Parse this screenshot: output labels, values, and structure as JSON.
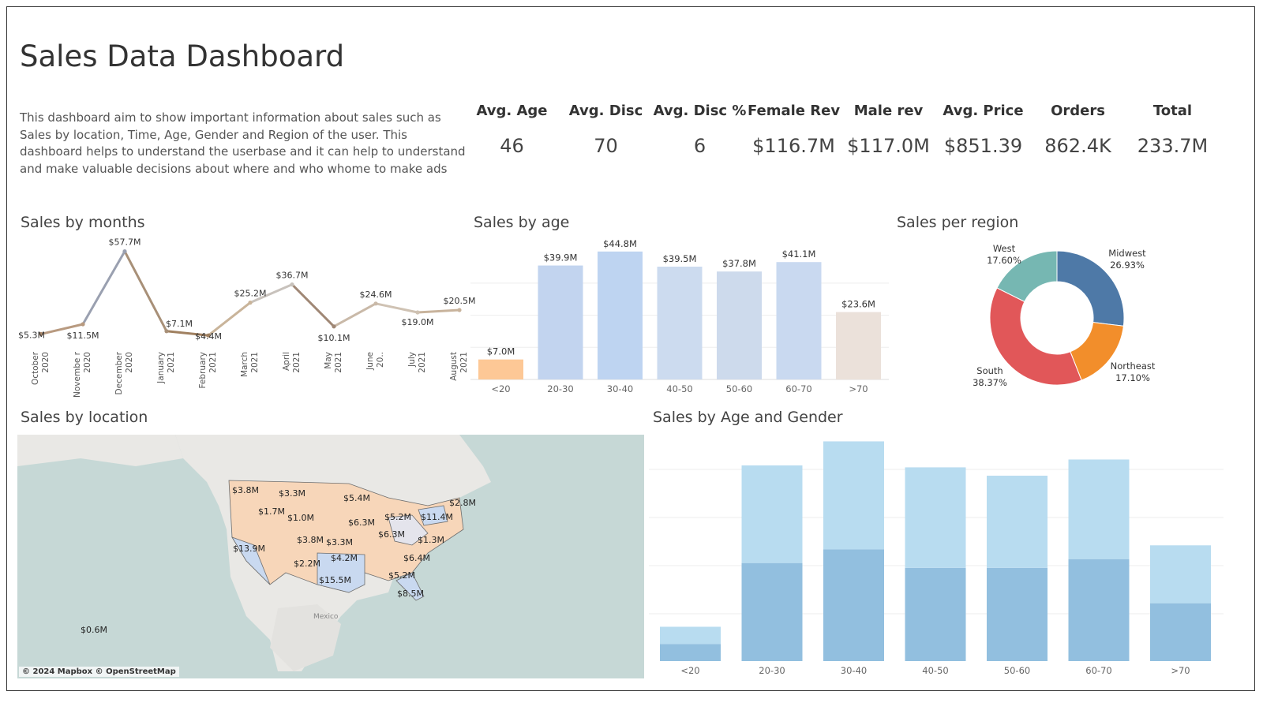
{
  "header": {
    "title": "Sales Data Dashboard",
    "description": "This dashboard aim to show important information about sales such as Sales by location, Time, Age, Gender and Region of the user. This dashboard helps to understand the userbase and it can help to understand and make valuable decisions about where and who whome to make ads"
  },
  "kpis": [
    {
      "label": "Avg. Age",
      "value": "46"
    },
    {
      "label": "Avg. Disc",
      "value": "70"
    },
    {
      "label": "Avg. Disc %",
      "value": "6"
    },
    {
      "label": "Female Rev",
      "value": "$116.7M"
    },
    {
      "label": "Male rev",
      "value": "$117.0M"
    },
    {
      "label": "Avg. Price",
      "value": "$851.39"
    },
    {
      "label": "Orders",
      "value": "862.4K"
    },
    {
      "label": "Total",
      "value": "233.7M"
    }
  ],
  "sections": {
    "months": "Sales by months",
    "age": "Sales by age",
    "region": "Sales per region",
    "location": "Sales by location",
    "age_gender": "Sales by Age and Gender"
  },
  "chart_data": [
    {
      "type": "line",
      "title": "Sales by months",
      "categories": [
        "October 2020",
        "Novembe r 2020",
        "December 2020",
        "January 2021",
        "February 2021",
        "March 2021",
        "April 2021",
        "May 2021",
        "June 20..",
        "July 2021",
        "August 2021"
      ],
      "values": [
        5.3,
        11.5,
        57.7,
        7.1,
        4.4,
        25.2,
        36.7,
        10.1,
        24.6,
        19.0,
        20.5
      ],
      "labels": [
        "$5.3M",
        "$11.5M",
        "$57.7M",
        "$7.1M",
        "$4.4M",
        "$25.2M",
        "$36.7M",
        "$10.1M",
        "$24.6M",
        "$19.0M",
        "$20.5M"
      ],
      "ylim": [
        0,
        60
      ],
      "colors": [
        "#b08d70",
        "#b89a80",
        "#9aa0b0",
        "#a89078",
        "#a08060",
        "#c9b49a",
        "#c8c2bc",
        "#a08876",
        "#c9b9a8",
        "#cfc2b3",
        "#c8b39c"
      ]
    },
    {
      "type": "bar",
      "title": "Sales by age",
      "categories": [
        "<20",
        "20-30",
        "30-40",
        "40-50",
        "50-60",
        "60-70",
        ">70"
      ],
      "values": [
        7.0,
        39.9,
        44.8,
        39.5,
        37.8,
        41.1,
        23.6
      ],
      "labels": [
        "$7.0M",
        "$39.9M",
        "$44.8M",
        "$39.5M",
        "$37.8M",
        "$41.1M",
        "$23.6M"
      ],
      "ylim": [
        0,
        50
      ],
      "colors": [
        "#fdc896",
        "#c2d4ef",
        "#bed4f1",
        "#ccdbef",
        "#cddaec",
        "#c9d9f0",
        "#ebe1da"
      ]
    },
    {
      "type": "pie",
      "title": "Sales per region",
      "slices": [
        {
          "name": "Midwest",
          "value": 26.93,
          "label": "26.93%",
          "color": "#4e79a7"
        },
        {
          "name": "Northeast",
          "value": 17.1,
          "label": "17.10%",
          "color": "#f28e2b"
        },
        {
          "name": "South",
          "value": 38.37,
          "label": "38.37%",
          "color": "#e15759"
        },
        {
          "name": "West",
          "value": 17.6,
          "label": "17.60%",
          "color": "#76b7b2"
        }
      ]
    },
    {
      "type": "bar",
      "title": "Sales by Age and Gender",
      "stacked": true,
      "categories": [
        "<20",
        "20-30",
        "30-40",
        "40-50",
        "50-60",
        "60-70",
        ">70"
      ],
      "series": [
        {
          "values": [
            3.5,
            20.0,
            22.8,
            19.0,
            19.0,
            20.8,
            11.8
          ],
          "color": "#92bfdf"
        },
        {
          "values": [
            3.5,
            19.9,
            22.0,
            20.5,
            18.8,
            20.3,
            11.8
          ],
          "color": "#b8dcf0"
        }
      ],
      "ylim": [
        0,
        46
      ],
      "grid": true
    },
    {
      "type": "map",
      "title": "Sales by location",
      "credit": "© 2024 Mapbox © OpenStreetMap",
      "place_label": "Mexico",
      "labels": [
        "$3.8M",
        "$3.3M",
        "$1.7M",
        "$1.0M",
        "$5.4M",
        "$2.8M",
        "$6.3M",
        "$5.2M",
        "$11.4M",
        "$6.3M",
        "$1.3M",
        "$13.9M",
        "$3.8M",
        "$3.3M",
        "$4.2M",
        "$2.2M",
        "$6.4M",
        "$15.5M",
        "$5.2M",
        "$8.5M",
        "$0.6M"
      ]
    }
  ]
}
